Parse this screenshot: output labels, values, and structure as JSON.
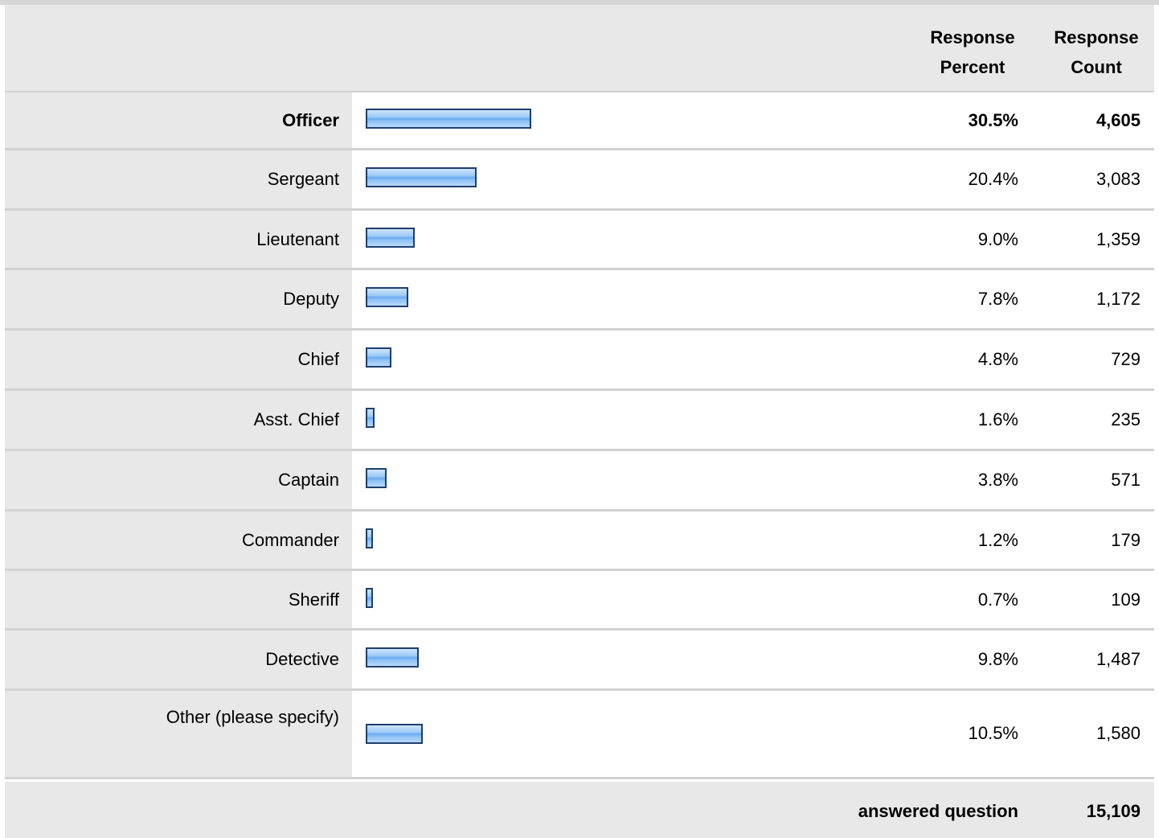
{
  "header": {
    "percent_label": "Response\nPercent",
    "count_label": "Response\nCount"
  },
  "chart_data": {
    "type": "bar",
    "categories": [
      "Officer",
      "Sergeant",
      "Lieutenant",
      "Deputy",
      "Chief",
      "Asst. Chief",
      "Captain",
      "Commander",
      "Sheriff",
      "Detective",
      "Other (please specify)"
    ],
    "percent_labels": [
      "30.5%",
      "20.4%",
      "9.0%",
      "7.8%",
      "4.8%",
      "1.6%",
      "3.8%",
      "1.2%",
      "0.7%",
      "9.8%",
      "10.5%"
    ],
    "values": [
      30.5,
      20.4,
      9.0,
      7.8,
      4.8,
      1.6,
      3.8,
      1.2,
      0.7,
      9.8,
      10.5
    ],
    "counts": [
      "4,605",
      "3,083",
      "1,359",
      "1,172",
      "729",
      "235",
      "571",
      "179",
      "109",
      "1,487",
      "1,580"
    ],
    "highlighted_category": "Officer",
    "bar_color": "#8cc0f4",
    "bar_border_color": "#1f3e6e"
  },
  "footer": {
    "label": "answered question",
    "total": "15,109"
  }
}
